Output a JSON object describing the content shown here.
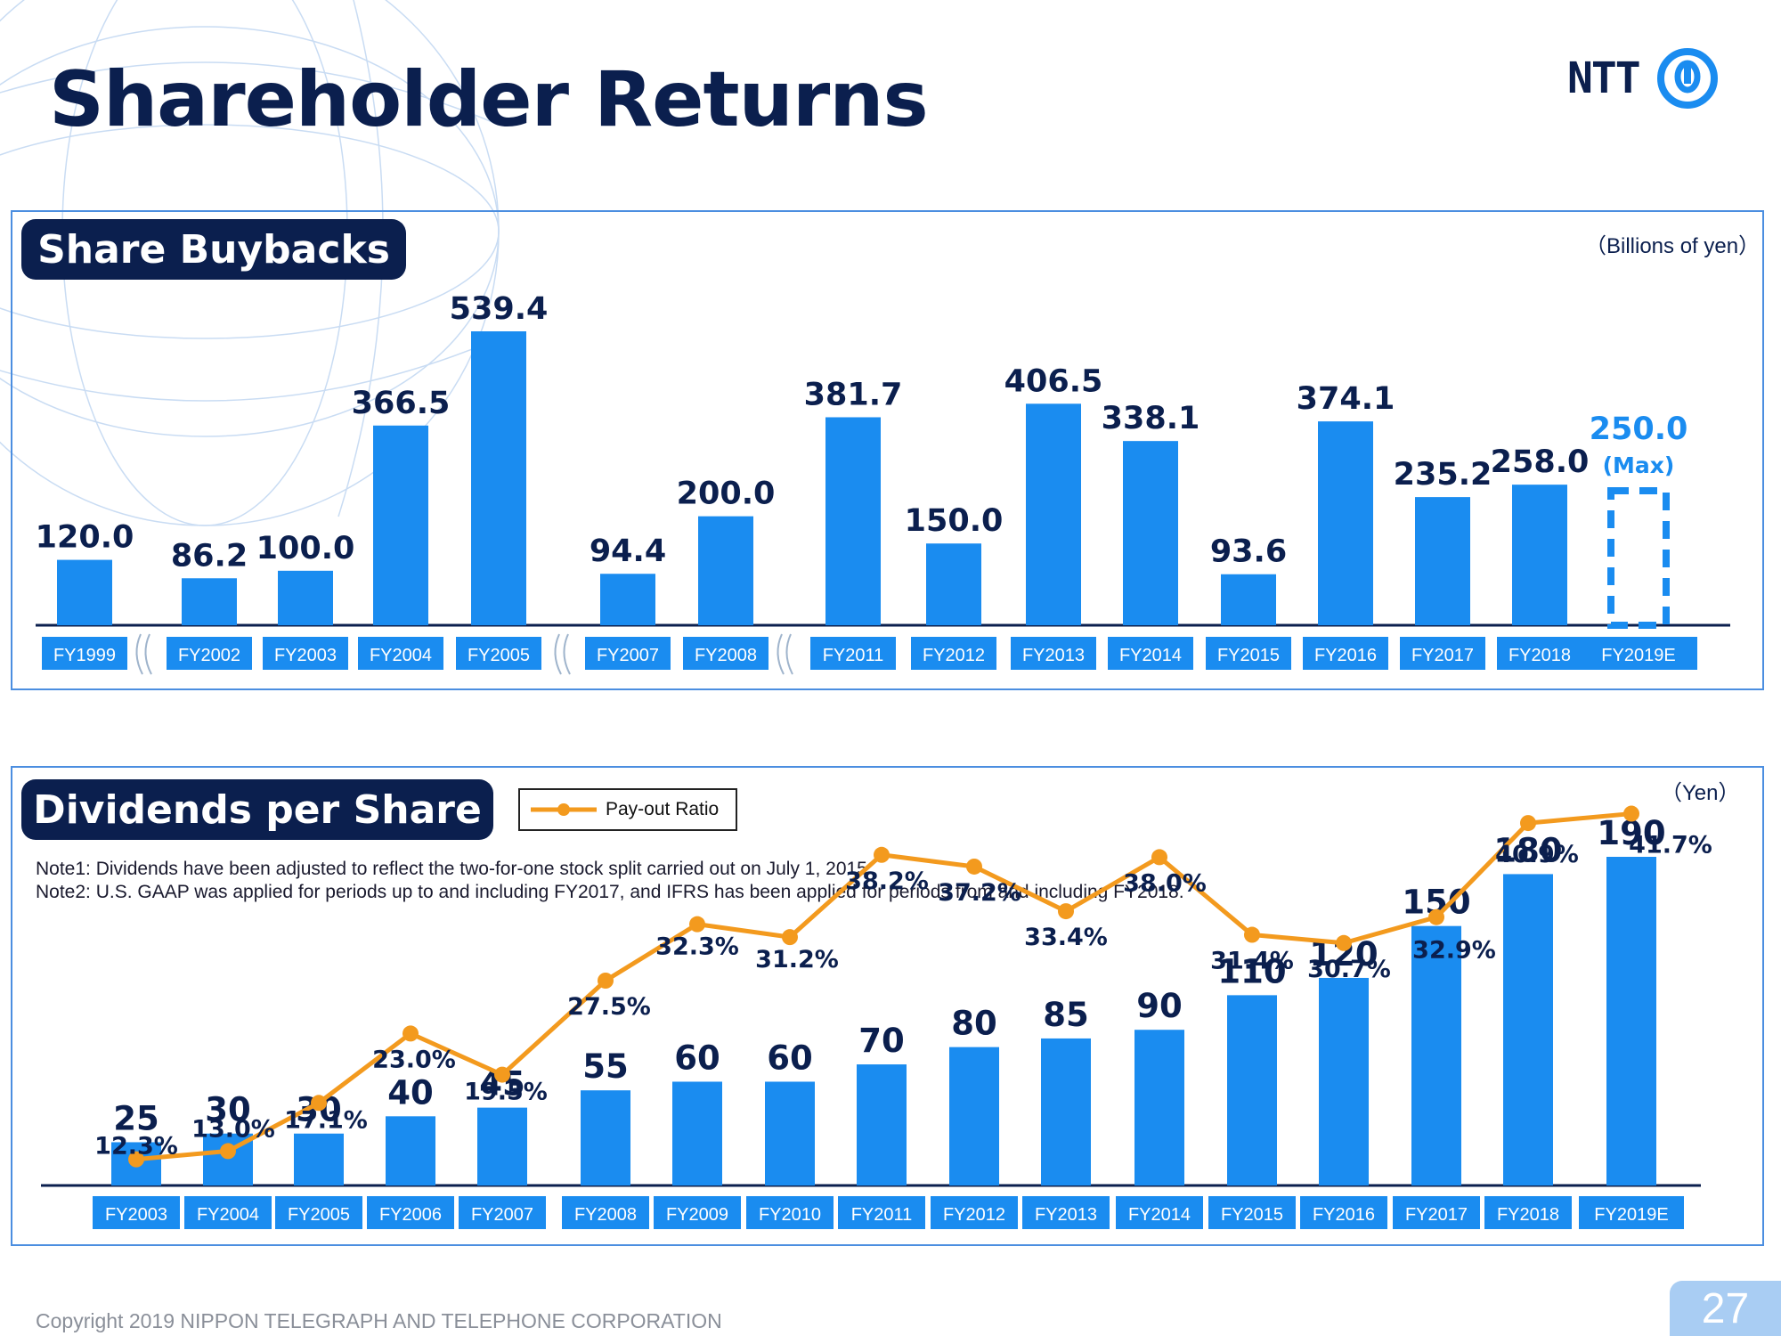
{
  "page": {
    "title": "Shareholder Returns",
    "logo_text": "NTT",
    "copyright": "Copyright 2019 NIPPON TELEGRAPH AND TELEPHONE CORPORATION",
    "page_number": "27"
  },
  "colors": {
    "navy": "#0b1f4e",
    "bar_blue": "#1a8cf0",
    "label_bg": "#1a8cf0",
    "payout_orange": "#f39a1e",
    "estimate_blue": "#1a8cf0",
    "panel_border": "#4b8ee0"
  },
  "buybacks": {
    "section_title": "Share Buybacks",
    "unit": "（Billions of yen）",
    "estimate_note": "(Max)"
  },
  "dividends": {
    "section_title": "Dividends per Share",
    "unit": "（Yen）",
    "legend_label": "Pay-out Ratio",
    "note1": "Note1: Dividends have been adjusted to reflect the two-for-one stock split carried out on July 1, 2015",
    "note2": "Note2: U.S. GAAP was applied for periods up to and including FY2017, and IFRS has been applied for periods from and including FY2018."
  },
  "chart_data": [
    {
      "type": "bar",
      "title": "Share Buybacks",
      "unit": "Billions of yen",
      "categories": [
        "FY1999",
        "FY2002",
        "FY2003",
        "FY2004",
        "FY2005",
        "FY2007",
        "FY2008",
        "FY2011",
        "FY2012",
        "FY2013",
        "FY2014",
        "FY2015",
        "FY2016",
        "FY2017",
        "FY2018",
        "FY2019E"
      ],
      "values": [
        120.0,
        86.2,
        100.0,
        366.5,
        539.4,
        94.4,
        200.0,
        381.7,
        150.0,
        406.5,
        338.1,
        93.6,
        374.1,
        235.2,
        258.0,
        250.0
      ],
      "value_labels": [
        "120.0",
        "86.2",
        "100.0",
        "366.5",
        "539.4",
        "94.4",
        "200.0",
        "381.7",
        "150.0",
        "406.5",
        "338.1",
        "93.6",
        "374.1",
        "235.2",
        "258.0",
        "250.0"
      ],
      "estimate_index": 15,
      "axis_breaks_after": [
        "FY1999",
        "FY2005",
        "FY2008"
      ],
      "ylim": [
        0,
        560
      ],
      "grid": false
    },
    {
      "type": "bar",
      "title": "Dividends per Share",
      "unit": "Yen",
      "categories": [
        "FY2003",
        "FY2004",
        "FY2005",
        "FY2006",
        "FY2007",
        "FY2008",
        "FY2009",
        "FY2010",
        "FY2011",
        "FY2012",
        "FY2013",
        "FY2014",
        "FY2015",
        "FY2016",
        "FY2017",
        "FY2018",
        "FY2019E"
      ],
      "values": [
        25,
        30,
        30,
        40,
        45,
        55,
        60,
        60,
        70,
        80,
        85,
        90,
        110,
        120,
        150,
        180,
        190
      ],
      "value_labels": [
        "25",
        "30",
        "30",
        "40",
        "45",
        "55",
        "60",
        "60",
        "70",
        "80",
        "85",
        "90",
        "110",
        "120",
        "150",
        "180",
        "190"
      ],
      "ylim": [
        0,
        200
      ],
      "grid": false,
      "series": [
        {
          "name": "Pay-out Ratio",
          "type": "line",
          "values": [
            12.3,
            13.0,
            17.1,
            23.0,
            19.5,
            27.5,
            32.3,
            31.2,
            38.2,
            37.2,
            33.4,
            38.0,
            31.4,
            30.7,
            32.9,
            40.9,
            41.7
          ],
          "labels": [
            "12.3%",
            "13.0%",
            "17.1%",
            "23.0%",
            "19.5%",
            "27.5%",
            "32.3%",
            "31.2%",
            "38.2%",
            "37.2%",
            "33.4%",
            "38.0%",
            "31.4%",
            "30.7%",
            "32.9%",
            "40.9%",
            "41.7%"
          ],
          "unit": "%"
        }
      ]
    }
  ]
}
